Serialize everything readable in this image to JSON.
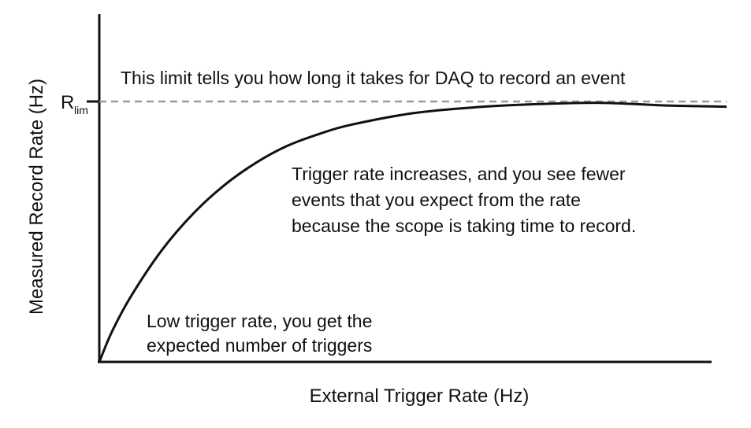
{
  "chart_data": {
    "type": "line",
    "title": "",
    "xlabel": "External Trigger Rate (Hz)",
    "ylabel": "Measured Record Rate (Hz)",
    "limit_label": {
      "main": "R",
      "sub": "lim"
    },
    "xlim": [
      0,
      1
    ],
    "ylim": [
      0,
      1
    ],
    "limit_value": 1,
    "series": [
      {
        "x": [
          0,
          0.02,
          0.05,
          0.1,
          0.15,
          0.2,
          0.25,
          0.3,
          0.35,
          0.4,
          0.5,
          0.6,
          0.7,
          0.8,
          0.9,
          1.0
        ],
        "y": [
          0,
          0.115,
          0.25,
          0.43,
          0.57,
          0.68,
          0.765,
          0.83,
          0.875,
          0.91,
          0.955,
          0.978,
          0.99,
          0.995,
          0.985,
          0.98
        ]
      }
    ],
    "annotations": [
      {
        "key": "limit",
        "lines": [
          "This limit tells you how long it takes for DAQ to record an event"
        ]
      },
      {
        "key": "middle",
        "lines": [
          "Trigger rate increases, and you see fewer",
          "events that you expect from the rate",
          "because the scope is taking time to record."
        ]
      },
      {
        "key": "low",
        "lines": [
          "Low trigger rate, you get the",
          "expected number of triggers"
        ]
      }
    ],
    "grid": false
  },
  "colors": {
    "axis": "#111111",
    "curve": "#111111",
    "limit_line": "#9a9a9a",
    "text": "#111111",
    "background": "#ffffff"
  }
}
